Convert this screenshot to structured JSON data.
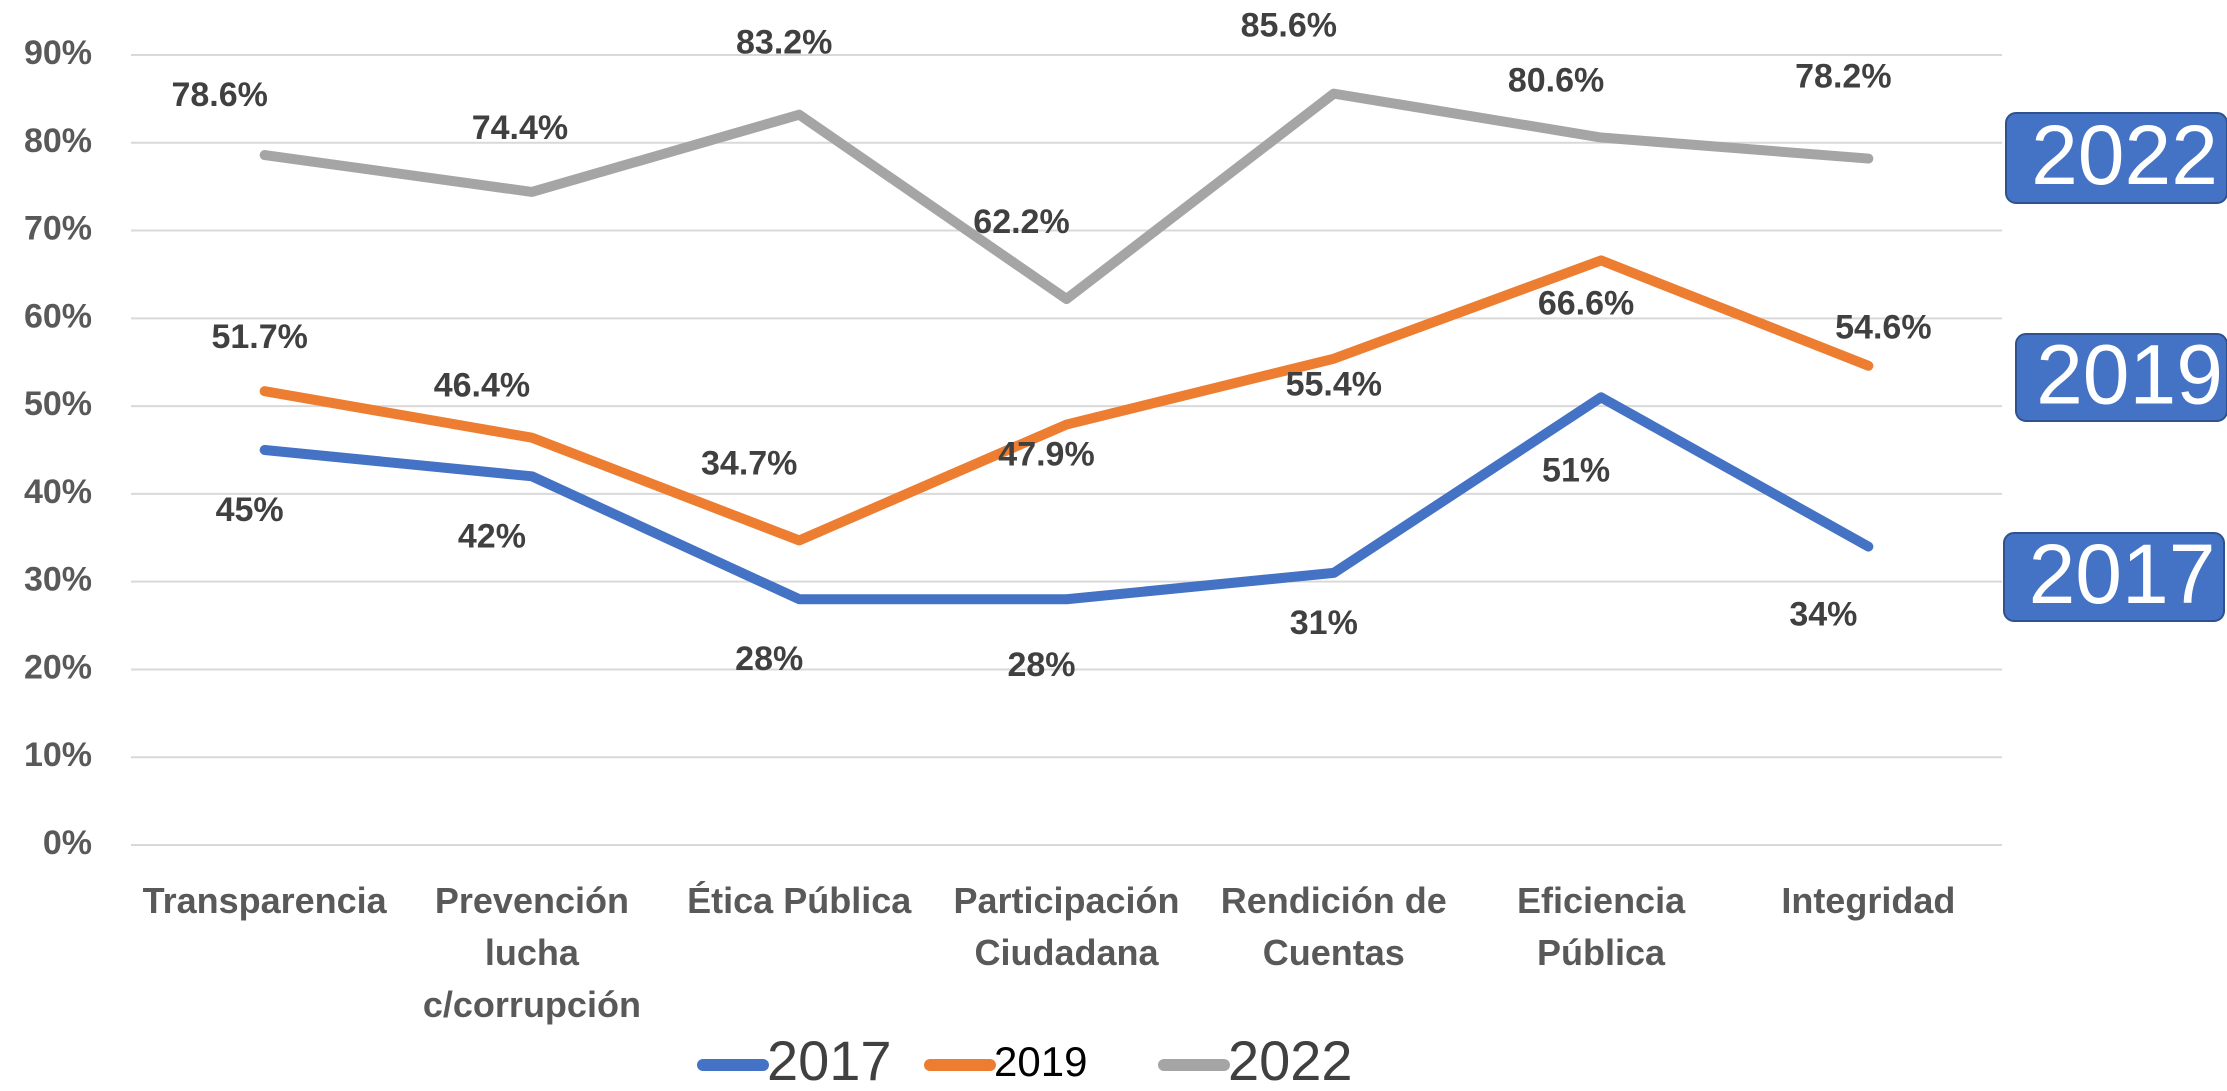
{
  "chart_data": {
    "type": "line",
    "categories": [
      "Transparencia",
      "Prevención lucha c/corrupción",
      "Ética Pública",
      "Participación Ciudadana",
      "Rendición de Cuentas",
      "Eficiencia Pública",
      "Integridad"
    ],
    "series": [
      {
        "name": "2017",
        "color": "#4472c4",
        "values": [
          45,
          42,
          28,
          28,
          31,
          51,
          34
        ],
        "value_labels": [
          "45%",
          "42%",
          "28%",
          "28%",
          "31%",
          "51%",
          "34%"
        ]
      },
      {
        "name": "2019",
        "color": "#ed7d31",
        "values": [
          51.7,
          46.4,
          34.7,
          47.9,
          55.4,
          66.6,
          54.6
        ],
        "value_labels": [
          "51.7%",
          "46.4%",
          "34.7%",
          "47.9%",
          "55.4%",
          "66.6%",
          "54.6%"
        ]
      },
      {
        "name": "2022",
        "color": "#a5a5a5",
        "values": [
          78.6,
          74.4,
          83.2,
          62.2,
          85.6,
          80.6,
          78.2
        ],
        "value_labels": [
          "78.6%",
          "74.4%",
          "83.2%",
          "62.2%",
          "85.6%",
          "80.6%",
          "78.2%"
        ]
      }
    ],
    "ylim": [
      0,
      90
    ],
    "yticks": [
      {
        "value": 0,
        "label": "0%"
      },
      {
        "value": 10,
        "label": "10%"
      },
      {
        "value": 20,
        "label": "20%"
      },
      {
        "value": 30,
        "label": "30%"
      },
      {
        "value": 40,
        "label": "40%"
      },
      {
        "value": 50,
        "label": "50%"
      },
      {
        "value": 60,
        "label": "60%"
      },
      {
        "value": 70,
        "label": "70%"
      },
      {
        "value": 80,
        "label": "80%"
      },
      {
        "value": 90,
        "label": "90%"
      }
    ],
    "grid": true,
    "legend": "bottom",
    "annotations": [
      "2022",
      "2019",
      "2017"
    ]
  }
}
